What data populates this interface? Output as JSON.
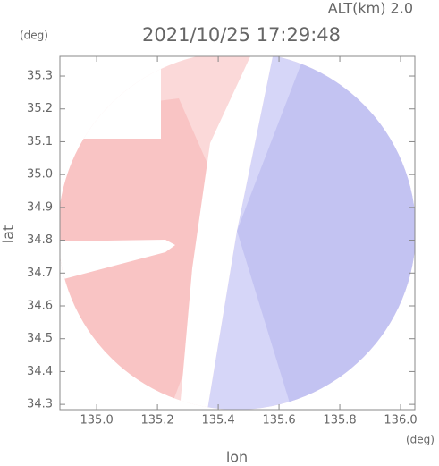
{
  "chart_data": {
    "type": "radar-map",
    "annotation": "ALT(km) 2.0",
    "title": "2021/10/25 17:29:48",
    "y_unit": "(deg)",
    "x_unit": "(deg)",
    "ylabel": "lat",
    "xlabel": "lon",
    "xlim": [
      134.879,
      136.047
    ],
    "ylim": [
      34.284,
      35.36
    ],
    "xticks": [
      {
        "value": 135.0,
        "label": "135.0"
      },
      {
        "value": 135.2,
        "label": "135.2"
      },
      {
        "value": 135.4,
        "label": "135.4"
      },
      {
        "value": 135.6,
        "label": "135.6"
      },
      {
        "value": 135.8,
        "label": "135.8"
      },
      {
        "value": 136.0,
        "label": "136.0"
      }
    ],
    "yticks": [
      34.3,
      34.4,
      34.5,
      34.6,
      34.7,
      34.8,
      34.9,
      {
        "value": 35.0,
        "label": "35.0"
      },
      35.1,
      35.2,
      35.3
    ],
    "grid": false
  }
}
